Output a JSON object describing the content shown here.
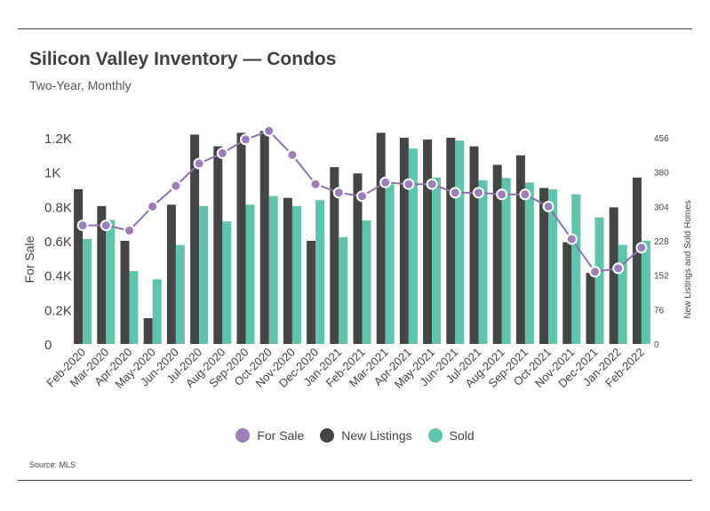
{
  "title": "Silicon Valley Inventory — Condos",
  "subtitle": "Two-Year, Monthly",
  "source": "Source:  MLS",
  "colors": {
    "for_sale": "#9b7fb8",
    "new_listings": "#454545",
    "sold": "#5ec4ac",
    "line": "#8c74a8"
  },
  "chart_data": {
    "type": "bar",
    "categories": [
      "Feb-2020",
      "Mar-2020",
      "Apr-2020",
      "May-2020",
      "Jun-2020",
      "Jul-2020",
      "Aug-2020",
      "Sep-2020",
      "Oct-2020",
      "Nov-2020",
      "Dec-2020",
      "Jan-2021",
      "Feb-2021",
      "Mar-2021",
      "Apr-2021",
      "May-2021",
      "Jun-2021",
      "Jul-2021",
      "Aug-2021",
      "Sep-2021",
      "Oct-2021",
      "Nov-2021",
      "Dec-2021",
      "Jan-2022",
      "Feb-2022"
    ],
    "series": [
      {
        "name": "New Listings",
        "kind": "bar",
        "axis": "right",
        "values": [
          342,
          305,
          228,
          57,
          308,
          463,
          437,
          467,
          471,
          323,
          228,
          391,
          377,
          467,
          456,
          452,
          456,
          437,
          396,
          417,
          345,
          225,
          157,
          302,
          368
        ]
      },
      {
        "name": "Sold",
        "kind": "bar",
        "axis": "right",
        "values": [
          232,
          274,
          161,
          143,
          219,
          305,
          271,
          308,
          327,
          305,
          318,
          236,
          273,
          353,
          432,
          368,
          450,
          362,
          367,
          357,
          342,
          331,
          280,
          219,
          228
        ]
      },
      {
        "name": "For Sale",
        "kind": "line",
        "axis": "left",
        "values": [
          690,
          690,
          660,
          800,
          920,
          1050,
          1110,
          1190,
          1240,
          1100,
          930,
          880,
          860,
          940,
          930,
          930,
          880,
          880,
          870,
          870,
          800,
          610,
          420,
          440,
          560
        ]
      }
    ],
    "ylabel": "For Sale",
    "y2label": "New Listings and Sold Homes",
    "yticks": [
      "0",
      "0.2K",
      "0.4K",
      "0.6K",
      "0.8K",
      "1K",
      "1.2K"
    ],
    "ylim": [
      0,
      1200
    ],
    "y2ticks": [
      "0",
      "76",
      "152",
      "228",
      "304",
      "380",
      "456"
    ],
    "y2lim": [
      0,
      456
    ]
  },
  "legend": [
    {
      "label": "For Sale",
      "color": "#9b7fb8"
    },
    {
      "label": "New Listings",
      "color": "#454545"
    },
    {
      "label": "Sold",
      "color": "#5ec4ac"
    }
  ]
}
